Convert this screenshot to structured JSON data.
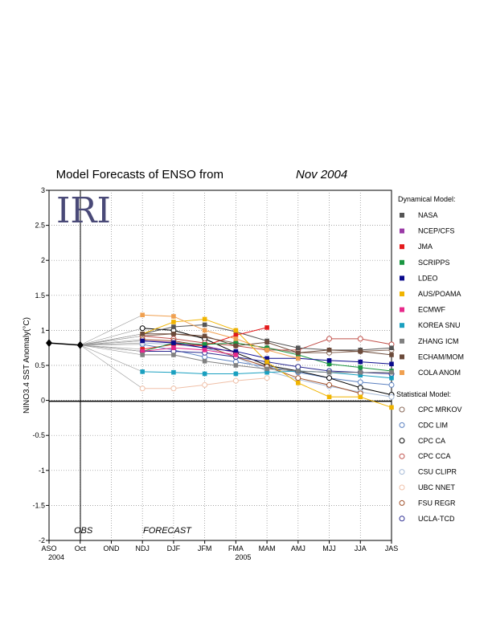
{
  "chart_data": {
    "type": "line",
    "title": "Model Forecasts of ENSO from",
    "title_date": "Nov 2004",
    "ylabel": "NINO3.4 SST Anomaly(°C)",
    "xlabel": "",
    "categories": [
      "ASO",
      "Oct",
      "OND",
      "NDJ",
      "DJF",
      "JFM",
      "FMA",
      "MAM",
      "AMJ",
      "MJJ",
      "JJA",
      "JAS"
    ],
    "year_labels": [
      {
        "index": 0,
        "label": "2004"
      },
      {
        "index": 6,
        "label": "2005"
      }
    ],
    "yticks": [
      -2,
      -1.5,
      -1,
      -0.5,
      0,
      0.5,
      1,
      1.5,
      2,
      2.5,
      3
    ],
    "ytick_labels": [
      "-2",
      "-1.5",
      "-1",
      "-0.5",
      "0",
      "0.5",
      "1",
      "1.5",
      "2",
      "2.5",
      "3"
    ],
    "ylim": [
      -2,
      3
    ],
    "grid": true,
    "observed": {
      "x": [
        "ASO",
        "Oct"
      ],
      "values": [
        0.82,
        0.79
      ]
    },
    "annotations": {
      "obs": "OBS",
      "forecast": "FORECAST"
    },
    "logo": "IRI",
    "legend_placement": "right",
    "dynamical_heading": "Dynamical Model:",
    "statistical_heading": "Statistical Model:",
    "dynamical": [
      {
        "name": "NASA",
        "color": "#555555",
        "values": [
          0.95,
          1.05,
          1.08,
          0.98,
          0.85,
          0.75,
          0.72,
          0.72,
          0.75
        ]
      },
      {
        "name": "NCEP/CFS",
        "color": "#9a3aa6",
        "values": [
          0.85,
          0.83,
          0.78,
          0.68,
          null,
          null,
          null,
          null,
          null
        ]
      },
      {
        "name": "JMA",
        "color": "#e41a1c",
        "values": [
          0.73,
          0.8,
          0.78,
          0.93,
          1.04,
          null,
          null,
          null,
          null
        ]
      },
      {
        "name": "SCRIPPS",
        "color": "#1a9641",
        "values": [
          0.7,
          0.82,
          0.8,
          0.82,
          0.75,
          0.65,
          0.52,
          0.47,
          0.42
        ]
      },
      {
        "name": "LDEO",
        "color": "#0a0a8c",
        "values": [
          0.85,
          0.82,
          0.75,
          0.7,
          0.6,
          0.6,
          0.57,
          0.55,
          0.52
        ]
      },
      {
        "name": "AUS/POAMA",
        "color": "#f0b400",
        "values": [
          0.95,
          1.12,
          1.16,
          1.0,
          0.55,
          0.25,
          0.05,
          0.05,
          -0.1
        ]
      },
      {
        "name": "ECMWF",
        "color": "#e7298a",
        "values": [
          0.7,
          0.75,
          0.72,
          0.65,
          null,
          null,
          null,
          null,
          null
        ]
      },
      {
        "name": "KOREA SNU",
        "color": "#1aa0c0",
        "values": [
          0.41,
          0.4,
          0.38,
          0.38,
          0.4,
          0.42,
          0.4,
          0.36,
          0.32
        ]
      },
      {
        "name": "ZHANG ICM",
        "color": "#808080",
        "values": [
          0.65,
          0.65,
          0.56,
          0.5,
          0.45,
          0.42,
          0.4,
          0.4,
          0.4
        ]
      },
      {
        "name": "ECHAM/MOM",
        "color": "#6b4a3a",
        "values": [
          0.95,
          0.95,
          0.92,
          0.78,
          0.83,
          0.68,
          0.72,
          0.7,
          0.65
        ]
      },
      {
        "name": "COLA ANOM",
        "color": "#f0a050",
        "values": [
          1.22,
          1.2,
          1.0,
          0.88,
          0.72,
          0.6,
          null,
          null,
          null
        ]
      }
    ],
    "statistical": [
      {
        "name": "CPC MRKOV",
        "color": "#8a6a5a",
        "values": [
          0.92,
          0.95,
          0.9,
          0.82,
          0.75,
          0.68,
          0.68,
          0.7,
          0.72
        ]
      },
      {
        "name": "CDC LIM",
        "color": "#5a80c0",
        "values": [
          0.8,
          0.72,
          0.62,
          0.55,
          0.48,
          0.4,
          0.32,
          0.26,
          0.22
        ]
      },
      {
        "name": "CPC CA",
        "color": "#000000",
        "values": [
          1.03,
          1.0,
          0.88,
          0.68,
          0.5,
          0.42,
          0.32,
          0.18,
          0.08
        ]
      },
      {
        "name": "CPC CCA",
        "color": "#c0504a",
        "values": [
          0.92,
          0.88,
          0.82,
          0.78,
          0.72,
          0.72,
          0.88,
          0.88,
          0.8
        ]
      },
      {
        "name": "CSU CLIPR",
        "color": "#a8bcd8",
        "values": [
          0.82,
          0.8,
          0.75,
          0.62,
          0.42,
          0.3,
          0.2,
          0.12,
          0.05
        ]
      },
      {
        "name": "UBC NNET",
        "color": "#f0c0a8",
        "values": [
          0.17,
          0.17,
          0.22,
          0.28,
          0.32,
          null,
          null,
          null,
          null
        ]
      },
      {
        "name": "FSU REGR",
        "color": "#a0502a",
        "values": [
          0.87,
          0.85,
          0.78,
          0.62,
          0.48,
          0.32,
          0.22,
          0.1,
          null
        ]
      },
      {
        "name": "UCLA-TCD",
        "color": "#2a2a90",
        "values": [
          0.7,
          0.7,
          0.68,
          0.62,
          0.55,
          0.48,
          0.42,
          0.4,
          0.38
        ]
      }
    ]
  }
}
